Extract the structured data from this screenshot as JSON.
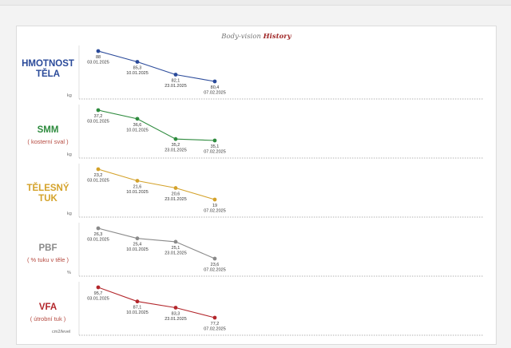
{
  "title": {
    "prefix": "Body-vision",
    "highlight": "History"
  },
  "chart_data": [
    {
      "type": "line",
      "label": "HMOTNOST TĚLA",
      "sublabel": "",
      "unit": "kg",
      "color": "#2a4a9a",
      "dates": [
        "03.01.2025",
        "10.01.2025",
        "23.01.2025",
        "07.02.2025"
      ],
      "values": [
        88,
        85.3,
        82.1,
        80.4
      ],
      "value_labels": [
        "88",
        "85,3",
        "82,1",
        "80,4"
      ]
    },
    {
      "type": "line",
      "label": "SMM",
      "sublabel": "( kosterní sval )",
      "unit": "kg",
      "color": "#2e8b3e",
      "dates": [
        "03.01.2025",
        "10.01.2025",
        "23.01.2025",
        "07.02.2025"
      ],
      "values": [
        37.2,
        36.6,
        35.2,
        35.1
      ],
      "value_labels": [
        "37,2",
        "36,6",
        "35,2",
        "35,1"
      ]
    },
    {
      "type": "line",
      "label": "TĚLESNÝ TUK",
      "sublabel": "",
      "unit": "kg",
      "color": "#d4a22a",
      "dates": [
        "03.01.2025",
        "10.01.2025",
        "23.01.2025",
        "07.02.2025"
      ],
      "values": [
        23.2,
        21.6,
        20.6,
        19
      ],
      "value_labels": [
        "23,2",
        "21,6",
        "20,6",
        "19"
      ]
    },
    {
      "type": "line",
      "label": "PBF",
      "sublabel": "( % tuku v těle )",
      "unit": "%",
      "color": "#8a8a8a",
      "dates": [
        "03.01.2025",
        "10.01.2025",
        "23.01.2025",
        "07.02.2025"
      ],
      "values": [
        26.3,
        25.4,
        25.1,
        23.6
      ],
      "value_labels": [
        "26,3",
        "25,4",
        "25,1",
        "23,6"
      ]
    },
    {
      "type": "line",
      "label": "VFA",
      "sublabel": "( útrobní tuk )",
      "unit": "cm2/level",
      "color": "#b3262b",
      "dates": [
        "03.01.2025",
        "10.01.2025",
        "23.01.2025",
        "07.02.2025"
      ],
      "values": [
        95.7,
        87.1,
        83.3,
        77.2
      ],
      "value_labels": [
        "95,7",
        "87,1",
        "83,3",
        "77,2"
      ]
    }
  ]
}
